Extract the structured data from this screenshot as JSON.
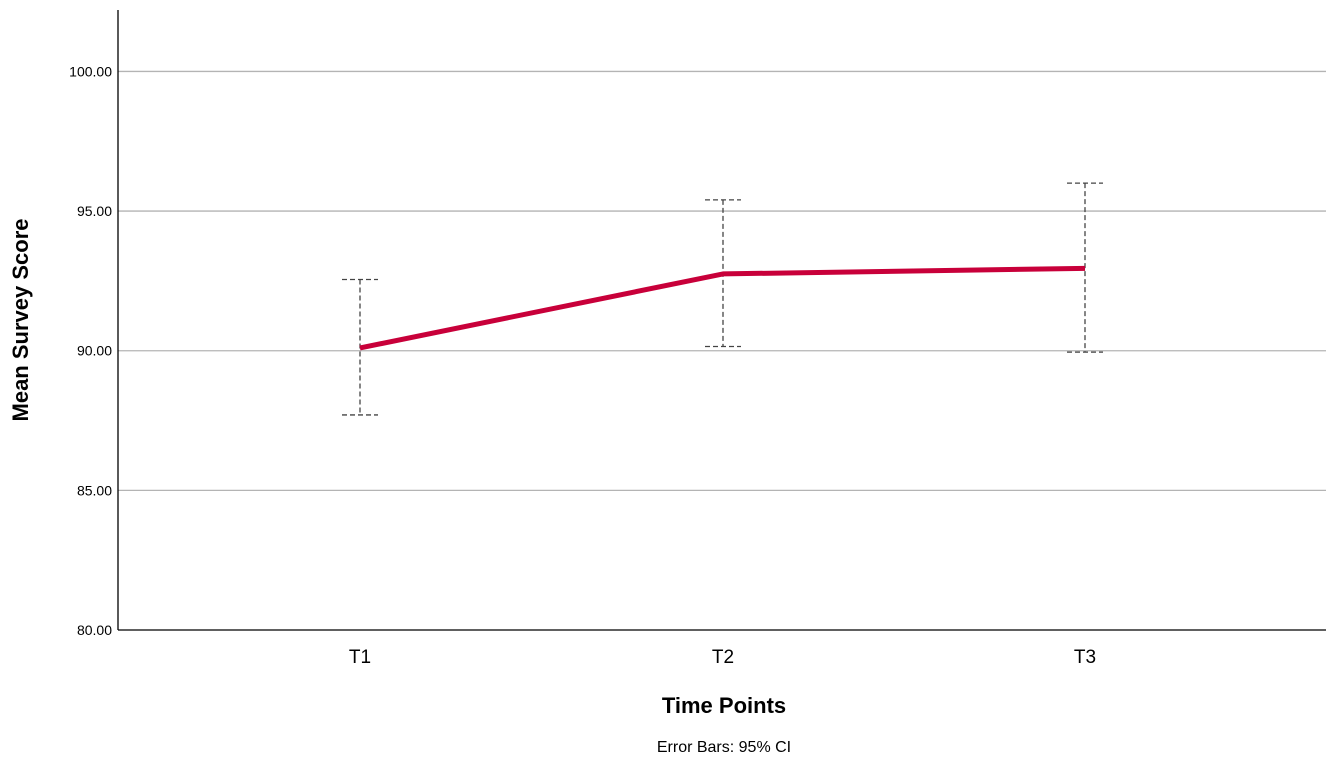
{
  "chart_data": {
    "type": "line",
    "categories": [
      "T1",
      "T2",
      "T3"
    ],
    "series": [
      {
        "values": [
          90.1,
          92.75,
          92.95
        ],
        "ci_lower": [
          87.7,
          90.15,
          89.95
        ],
        "ci_upper": [
          92.55,
          95.4,
          96.0
        ],
        "color": "#c8003a"
      }
    ],
    "xlabel": "Time Points",
    "ylabel": "Mean Survey Score",
    "footnote": "Error Bars: 95% CI",
    "ylim": [
      80,
      102.2
    ],
    "yticks": [
      80,
      85,
      90,
      95,
      100
    ],
    "ytick_labels": [
      "80.00",
      "85.00",
      "90.00",
      "95.00",
      "100.00"
    ],
    "grid": true,
    "colors": {
      "line": "#c8003a",
      "grid": "#b4b4b4",
      "axis": "#000000",
      "error_bar": "#444444"
    }
  }
}
